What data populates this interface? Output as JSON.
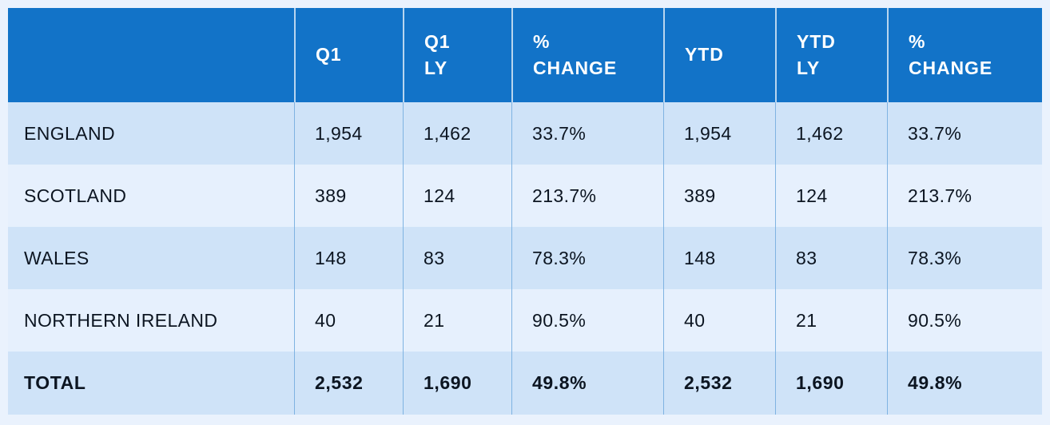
{
  "colors": {
    "header_bg": "#1273c8",
    "header_text": "#ffffff",
    "row_alt_bg": "#cfe3f8",
    "row_light_bg": "#e6f0fd",
    "page_bg": "#eaf2fd",
    "body_divider": "#7fb3e2",
    "text": "#0c1521"
  },
  "table": {
    "header_display": [
      "",
      "Q1",
      "Q1\nLY",
      "%\nCHANGE",
      "YTD",
      "YTD\nLY",
      "%\nCHANGE"
    ]
  },
  "chart_data": {
    "type": "table",
    "columns": [
      "",
      "Q1",
      "Q1 LY",
      "% CHANGE",
      "YTD",
      "YTD LY",
      "% CHANGE"
    ],
    "rows": [
      [
        "ENGLAND",
        "1,954",
        "1,462",
        "33.7%",
        "1,954",
        "1,462",
        "33.7%"
      ],
      [
        "SCOTLAND",
        "389",
        "124",
        "213.7%",
        "389",
        "124",
        "213.7%"
      ],
      [
        "WALES",
        "148",
        "83",
        "78.3%",
        "148",
        "83",
        "78.3%"
      ],
      [
        "NORTHERN IRELAND",
        "40",
        "21",
        "90.5%",
        "40",
        "21",
        "90.5%"
      ],
      [
        "TOTAL",
        "2,532",
        "1,690",
        "49.8%",
        "2,532",
        "1,690",
        "49.8%"
      ]
    ]
  }
}
